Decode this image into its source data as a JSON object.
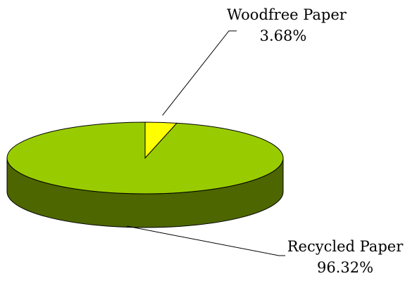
{
  "chart_data": {
    "type": "pie",
    "categories": [
      "Woodfree Paper",
      "Recycled Paper"
    ],
    "values": [
      3.68,
      96.32
    ],
    "value_labels": [
      "3.68%",
      "96.32%"
    ],
    "unit": "%",
    "style": "3d",
    "legend": "none",
    "colors": {
      "woodfree_top": "#ffff00",
      "woodfree_side": "#a3a300",
      "recycled_top": "#99cc00",
      "recycled_side": "#4d6600",
      "outline": "#000000",
      "background": "#ffffff"
    }
  }
}
